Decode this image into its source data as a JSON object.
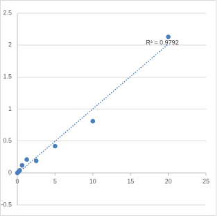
{
  "chart_data": {
    "type": "scatter",
    "x": [
      0,
      0.156,
      0.312,
      0.625,
      1.25,
      2.5,
      5,
      10,
      20
    ],
    "series": [
      {
        "color": "#4a7ebb",
        "values": [
          0,
          0.02,
          0.04,
          0.12,
          0.21,
          0.19,
          0.42,
          0.81,
          2.13
        ]
      }
    ],
    "xlim": [
      0,
      25
    ],
    "xticks": [
      0,
      5,
      10,
      15,
      20,
      25
    ],
    "ylim": [
      -0.5,
      2.5
    ],
    "yticks": [
      -0.5,
      0,
      0.5,
      1,
      1.5,
      2,
      2.5
    ],
    "grid": true,
    "trendline": "linear",
    "annotation": "R² = 0.9792"
  }
}
